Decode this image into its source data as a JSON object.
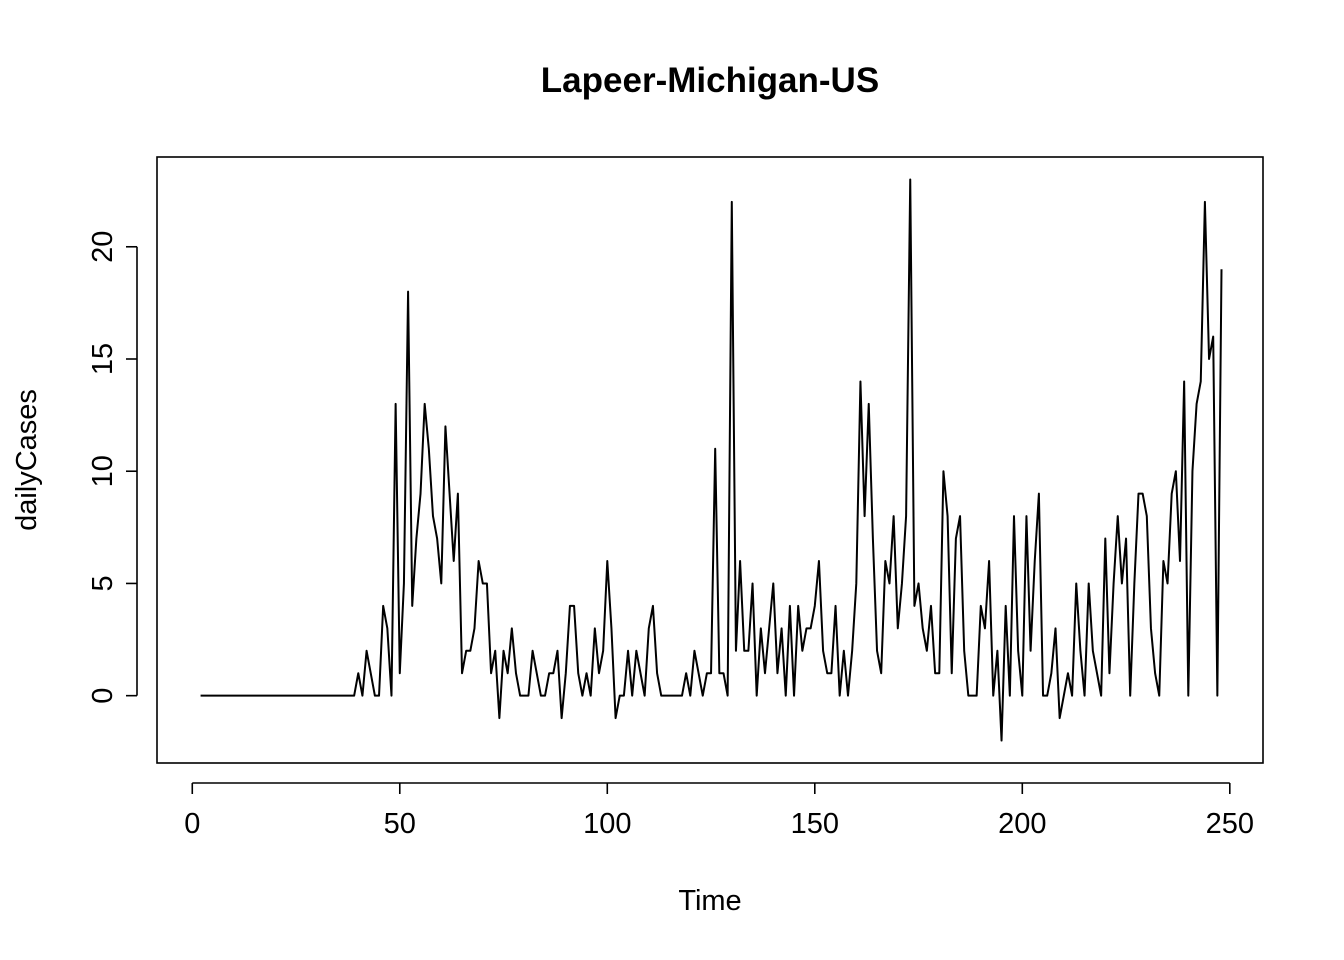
{
  "chart_data": {
    "type": "line",
    "title": "Lapeer-Michigan-US",
    "xlabel": "Time",
    "ylabel": "dailyCases",
    "xlim": [
      -8.5,
      258
    ],
    "ylim": [
      -3,
      24
    ],
    "x_ticks": [
      0,
      50,
      100,
      150,
      200,
      250
    ],
    "y_ticks": [
      0,
      5,
      10,
      15,
      20
    ],
    "grid": false,
    "legend": "none",
    "color": "#000000",
    "series": [
      {
        "x_start": 2,
        "values": [
          0,
          0,
          0,
          0,
          0,
          0,
          0,
          0,
          0,
          0,
          0,
          0,
          0,
          0,
          0,
          0,
          0,
          0,
          0,
          0,
          0,
          0,
          0,
          0,
          0,
          0,
          0,
          0,
          0,
          0,
          0,
          0,
          0,
          0,
          0,
          0,
          0,
          0,
          1,
          0,
          2,
          1,
          0,
          0,
          4,
          3,
          0,
          13,
          1,
          5,
          18,
          4,
          7,
          9,
          13,
          11,
          8,
          7,
          5,
          12,
          9,
          6,
          9,
          1,
          2,
          2,
          3,
          6,
          5,
          5,
          1,
          2,
          -1,
          2,
          1,
          3,
          1,
          0,
          0,
          0,
          2,
          1,
          0,
          0,
          1,
          1,
          2,
          -1,
          1,
          4,
          4,
          1,
          0,
          1,
          0,
          3,
          1,
          2,
          6,
          3,
          -1,
          0,
          0,
          2,
          0,
          2,
          1,
          0,
          3,
          4,
          1,
          0,
          0,
          0,
          0,
          0,
          0,
          1,
          0,
          2,
          1,
          0,
          1,
          1,
          11,
          1,
          1,
          0,
          22,
          2,
          6,
          2,
          2,
          5,
          0,
          3,
          1,
          3,
          5,
          1,
          3,
          0,
          4,
          0,
          4,
          2,
          3,
          3,
          4,
          6,
          2,
          1,
          1,
          4,
          0,
          2,
          0,
          2,
          5,
          14,
          8,
          13,
          7,
          2,
          1,
          6,
          5,
          8,
          3,
          5,
          8,
          23,
          4,
          5,
          3,
          2,
          4,
          1,
          1,
          10,
          8,
          1,
          7,
          8,
          2,
          0,
          0,
          0,
          4,
          3,
          6,
          0,
          2,
          -2,
          4,
          0,
          8,
          2,
          0,
          8,
          2,
          6,
          9,
          0,
          0,
          1,
          3,
          -1,
          0,
          1,
          0,
          5,
          2,
          0,
          5,
          2,
          1,
          0,
          7,
          1,
          5,
          8,
          5,
          7,
          0,
          5,
          9,
          9,
          8,
          3,
          1,
          0,
          6,
          5,
          9,
          10,
          6,
          14,
          0,
          10,
          13,
          14,
          22,
          15,
          16,
          0,
          19
        ]
      }
    ]
  }
}
